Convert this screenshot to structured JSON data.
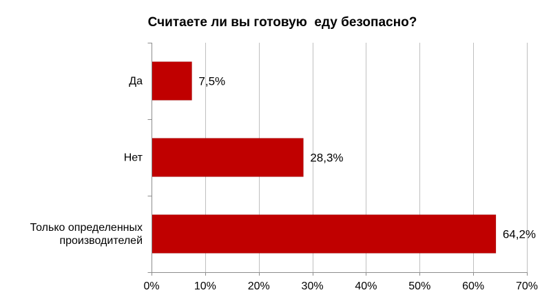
{
  "chart_data": {
    "type": "bar",
    "orientation": "horizontal",
    "title": "Считаете ли вы готовую  еду безопасно?",
    "categories": [
      "Да",
      "Нет",
      "Только определенных производителей"
    ],
    "category_lines": [
      [
        "Да"
      ],
      [
        "Нет"
      ],
      [
        "Только определенных",
        "производителей"
      ]
    ],
    "values": [
      7.5,
      28.3,
      64.2
    ],
    "data_labels": [
      "7,5%",
      "28,3%",
      "64,2%"
    ],
    "xlim": [
      0,
      70
    ],
    "x_ticks": [
      0,
      10,
      20,
      30,
      40,
      50,
      60,
      70
    ],
    "x_tick_labels": [
      "0%",
      "10%",
      "20%",
      "30%",
      "40%",
      "50%",
      "60%",
      "70%"
    ],
    "grid": true,
    "legend": "none",
    "bar_color": "#c00000"
  }
}
